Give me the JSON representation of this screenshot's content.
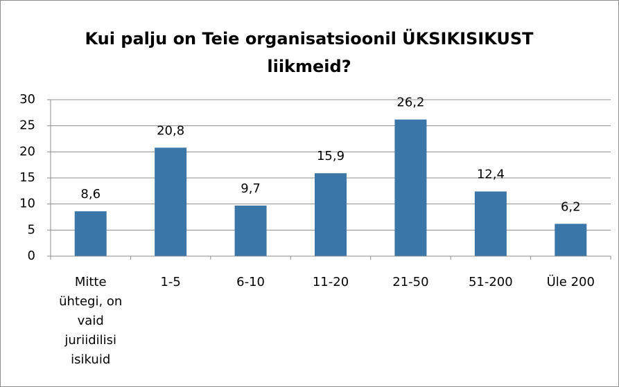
{
  "chart_data": {
    "type": "bar",
    "title": "Kui palju on Teie organisatsioonil ÜKSIKISIKUST liikmeid?",
    "categories": [
      "Mitte ühtegi, on vaid juriidilisi isikuid",
      "1-5",
      "6-10",
      "11-20",
      "21-50",
      "51-200",
      "Üle 200"
    ],
    "values": [
      8.6,
      20.8,
      9.7,
      15.9,
      26.2,
      12.4,
      6.2
    ],
    "value_labels": [
      "8,6",
      "20,8",
      "9,7",
      "15,9",
      "26,2",
      "12,4",
      "6,2"
    ],
    "color": "#3a76a8",
    "ylim": [
      0,
      30
    ],
    "yticks": [
      0,
      5,
      10,
      15,
      20,
      25,
      30
    ],
    "grid": true
  }
}
